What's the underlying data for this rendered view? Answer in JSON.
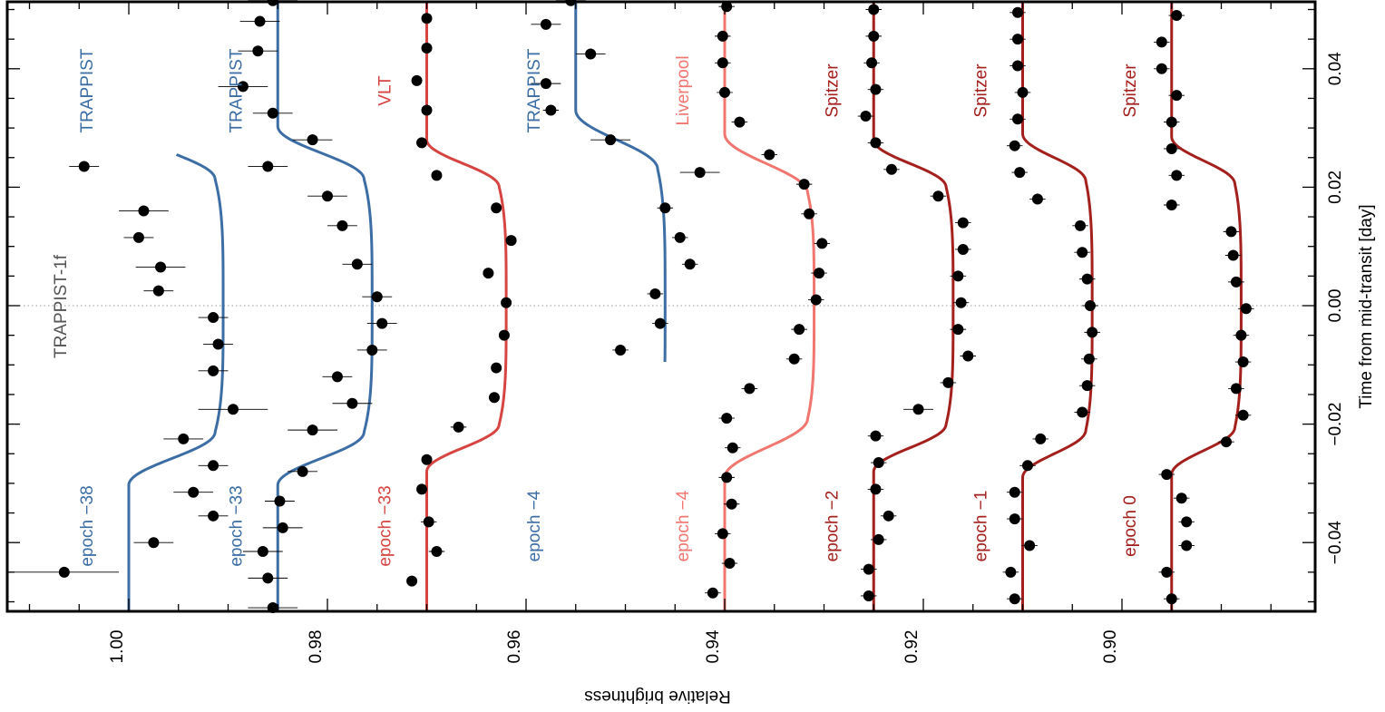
{
  "chart_data": {
    "type": "scatter",
    "title": "",
    "planet_label": "TRAPPIST-1f",
    "xlabel": "Relative brightness",
    "ylabel": "Time from mid-transit [day]",
    "xlim": [
      0.885,
      1.011
    ],
    "ylim": [
      -0.0515,
      0.0515
    ],
    "x_direction": "reversed",
    "x_ticks": [
      1.0,
      0.98,
      0.96,
      0.94,
      0.92,
      0.9
    ],
    "x_tick_labels": [
      "1.00",
      "0.98",
      "0.96",
      "0.94",
      "0.92",
      "0.90"
    ],
    "y_ticks": [
      -0.04,
      -0.02,
      0.0,
      0.02,
      0.04
    ],
    "y_tick_labels": [
      "−0.04",
      "−0.02",
      "0.00",
      "0.02",
      "0.04"
    ],
    "zero_line": true,
    "grid": false,
    "series": [
      {
        "epoch": "epoch −38",
        "instrument": "TRAPPIST",
        "color": "#3c6ea5",
        "baseline": 1.0,
        "depth": 0.0095,
        "half_width": 0.0258,
        "ingress": 0.0045,
        "t_start": -0.0515,
        "t_end": 0.0255,
        "points": [
          {
            "t": -0.045,
            "f": 1.0065,
            "err": 0.0055
          },
          {
            "t": -0.04,
            "f": 0.9975,
            "err": 0.002
          },
          {
            "t": -0.0355,
            "f": 0.9915,
            "err": 0.0015
          },
          {
            "t": -0.0315,
            "f": 0.9935,
            "err": 0.002
          },
          {
            "t": -0.027,
            "f": 0.9915,
            "err": 0.0015
          },
          {
            "t": -0.0225,
            "f": 0.9945,
            "err": 0.002
          },
          {
            "t": -0.0175,
            "f": 0.9895,
            "err": 0.0035
          },
          {
            "t": -0.011,
            "f": 0.9915,
            "err": 0.0015
          },
          {
            "t": -0.0065,
            "f": 0.991,
            "err": 0.0015
          },
          {
            "t": -0.002,
            "f": 0.9915,
            "err": 0.0015
          },
          {
            "t": 0.0025,
            "f": 0.997,
            "err": 0.0015
          },
          {
            "t": 0.0065,
            "f": 0.9968,
            "err": 0.0025
          },
          {
            "t": 0.0115,
            "f": 0.999,
            "err": 0.0015
          },
          {
            "t": 0.016,
            "f": 0.9985,
            "err": 0.0025
          },
          {
            "t": 0.0235,
            "f": 1.0045,
            "err": 0.0015
          }
        ]
      },
      {
        "epoch": "epoch −33",
        "instrument": "TRAPPIST",
        "color": "#3c6ea5",
        "baseline": 0.985,
        "depth": 0.0095,
        "half_width": 0.0258,
        "ingress": 0.0045,
        "t_start": -0.0515,
        "t_end": 0.0515,
        "points": [
          {
            "t": -0.051,
            "f": 0.9855,
            "err": 0.0025
          },
          {
            "t": -0.046,
            "f": 0.986,
            "err": 0.002
          },
          {
            "t": -0.0415,
            "f": 0.9865,
            "err": 0.002
          },
          {
            "t": -0.0375,
            "f": 0.9845,
            "err": 0.002
          },
          {
            "t": -0.033,
            "f": 0.9848,
            "err": 0.0015
          },
          {
            "t": -0.028,
            "f": 0.9825,
            "err": 0.0015
          },
          {
            "t": -0.021,
            "f": 0.9815,
            "err": 0.0025
          },
          {
            "t": -0.0165,
            "f": 0.9775,
            "err": 0.002
          },
          {
            "t": -0.012,
            "f": 0.979,
            "err": 0.0015
          },
          {
            "t": -0.0075,
            "f": 0.9755,
            "err": 0.0015
          },
          {
            "t": -0.003,
            "f": 0.9745,
            "err": 0.0015
          },
          {
            "t": 0.0015,
            "f": 0.975,
            "err": 0.0015
          },
          {
            "t": 0.007,
            "f": 0.977,
            "err": 0.0015
          },
          {
            "t": 0.0135,
            "f": 0.9785,
            "err": 0.0015
          },
          {
            "t": 0.0185,
            "f": 0.98,
            "err": 0.002
          },
          {
            "t": 0.0235,
            "f": 0.986,
            "err": 0.002
          },
          {
            "t": 0.028,
            "f": 0.9815,
            "err": 0.002
          },
          {
            "t": 0.0325,
            "f": 0.9855,
            "err": 0.002
          },
          {
            "t": 0.037,
            "f": 0.9885,
            "err": 0.0025
          },
          {
            "t": 0.043,
            "f": 0.987,
            "err": 0.002
          },
          {
            "t": 0.048,
            "f": 0.9868,
            "err": 0.002
          },
          {
            "t": 0.0515,
            "f": 0.9855,
            "err": 0.0025
          }
        ]
      },
      {
        "epoch": "epoch −33",
        "instrument": "VLT",
        "color": "#d64541",
        "baseline": 0.97,
        "depth": 0.008,
        "half_width": 0.024,
        "ingress": 0.004,
        "t_start": -0.0515,
        "t_end": 0.0515,
        "points": [
          {
            "t": -0.0465,
            "f": 0.9715,
            "err": 0.0005
          },
          {
            "t": -0.0415,
            "f": 0.969,
            "err": 0.0008
          },
          {
            "t": -0.0365,
            "f": 0.9698,
            "err": 0.0008
          },
          {
            "t": -0.031,
            "f": 0.9705,
            "err": 0.0005
          },
          {
            "t": -0.026,
            "f": 0.97,
            "err": 0.0005
          },
          {
            "t": -0.0205,
            "f": 0.9668,
            "err": 0.0008
          },
          {
            "t": -0.0155,
            "f": 0.9632,
            "err": 0.0005
          },
          {
            "t": -0.0105,
            "f": 0.963,
            "err": 0.0005
          },
          {
            "t": -0.005,
            "f": 0.9622,
            "err": 0.0005
          },
          {
            "t": 0.0005,
            "f": 0.962,
            "err": 0.0005
          },
          {
            "t": 0.0055,
            "f": 0.9638,
            "err": 0.0005
          },
          {
            "t": 0.011,
            "f": 0.9615,
            "err": 0.0005
          },
          {
            "t": 0.0165,
            "f": 0.963,
            "err": 0.0005
          },
          {
            "t": 0.022,
            "f": 0.969,
            "err": 0.0005
          },
          {
            "t": 0.0275,
            "f": 0.9705,
            "err": 0.0005
          },
          {
            "t": 0.033,
            "f": 0.97,
            "err": 0.0005
          },
          {
            "t": 0.038,
            "f": 0.971,
            "err": 0.0005
          },
          {
            "t": 0.0435,
            "f": 0.97,
            "err": 0.0005
          },
          {
            "t": 0.0485,
            "f": 0.97,
            "err": 0.0005
          }
        ]
      },
      {
        "epoch": "epoch −4",
        "instrument": "TRAPPIST",
        "color": "#3c6ea5",
        "baseline": 0.955,
        "depth": 0.009,
        "half_width": 0.028,
        "ingress": 0.005,
        "t_start": -0.0095,
        "t_end": 0.0515,
        "points": [
          {
            "t": -0.0075,
            "f": 0.9505,
            "err": 0.0008
          },
          {
            "t": -0.003,
            "f": 0.9465,
            "err": 0.0008
          },
          {
            "t": 0.002,
            "f": 0.947,
            "err": 0.0008
          },
          {
            "t": 0.007,
            "f": 0.9435,
            "err": 0.0008
          },
          {
            "t": 0.0115,
            "f": 0.9445,
            "err": 0.0008
          },
          {
            "t": 0.0165,
            "f": 0.946,
            "err": 0.0008
          },
          {
            "t": 0.0225,
            "f": 0.9425,
            "err": 0.002
          },
          {
            "t": 0.028,
            "f": 0.9515,
            "err": 0.002
          },
          {
            "t": 0.033,
            "f": 0.9575,
            "err": 0.0008
          },
          {
            "t": 0.0375,
            "f": 0.958,
            "err": 0.0015
          },
          {
            "t": 0.0425,
            "f": 0.9535,
            "err": 0.0015
          },
          {
            "t": 0.0475,
            "f": 0.958,
            "err": 0.0015
          },
          {
            "t": 0.0515,
            "f": 0.9555,
            "err": 0.0015
          }
        ]
      },
      {
        "epoch": "epoch −4",
        "instrument": "Liverpool",
        "color": "#f0766f",
        "baseline": 0.94,
        "depth": 0.009,
        "half_width": 0.024,
        "ingress": 0.005,
        "t_start": -0.0515,
        "t_end": 0.0515,
        "points": [
          {
            "t": -0.0485,
            "f": 0.9412,
            "err": 0.0008
          },
          {
            "t": -0.0435,
            "f": 0.9395,
            "err": 0.0008
          },
          {
            "t": -0.0385,
            "f": 0.9402,
            "err": 0.0008
          },
          {
            "t": -0.0335,
            "f": 0.9393,
            "err": 0.0008
          },
          {
            "t": -0.029,
            "f": 0.9398,
            "err": 0.0008
          },
          {
            "t": -0.024,
            "f": 0.9392,
            "err": 0.0008
          },
          {
            "t": -0.019,
            "f": 0.9398,
            "err": 0.0008
          },
          {
            "t": -0.014,
            "f": 0.9375,
            "err": 0.0008
          },
          {
            "t": -0.009,
            "f": 0.933,
            "err": 0.0008
          },
          {
            "t": -0.004,
            "f": 0.9325,
            "err": 0.0008
          },
          {
            "t": 0.001,
            "f": 0.9308,
            "err": 0.0008
          },
          {
            "t": 0.0055,
            "f": 0.9305,
            "err": 0.0008
          },
          {
            "t": 0.0105,
            "f": 0.9302,
            "err": 0.0008
          },
          {
            "t": 0.0155,
            "f": 0.9315,
            "err": 0.0008
          },
          {
            "t": 0.0205,
            "f": 0.932,
            "err": 0.0008
          },
          {
            "t": 0.0255,
            "f": 0.9355,
            "err": 0.0008
          },
          {
            "t": 0.031,
            "f": 0.9385,
            "err": 0.0008
          },
          {
            "t": 0.036,
            "f": 0.94,
            "err": 0.0008
          },
          {
            "t": 0.041,
            "f": 0.9402,
            "err": 0.0008
          },
          {
            "t": 0.0455,
            "f": 0.9402,
            "err": 0.0008
          },
          {
            "t": 0.0505,
            "f": 0.9398,
            "err": 0.0008
          }
        ]
      },
      {
        "epoch": "epoch −2",
        "instrument": "Spitzer",
        "color": "#a3201d",
        "baseline": 0.925,
        "depth": 0.008,
        "half_width": 0.024,
        "ingress": 0.004,
        "t_start": -0.0515,
        "t_end": 0.0515,
        "points": [
          {
            "t": -0.049,
            "f": 0.9255,
            "err": 0.0008
          },
          {
            "t": -0.0445,
            "f": 0.9255,
            "err": 0.0008
          },
          {
            "t": -0.0395,
            "f": 0.9245,
            "err": 0.0008
          },
          {
            "t": -0.0355,
            "f": 0.9235,
            "err": 0.0008
          },
          {
            "t": -0.031,
            "f": 0.9248,
            "err": 0.0008
          },
          {
            "t": -0.0265,
            "f": 0.9245,
            "err": 0.0008
          },
          {
            "t": -0.022,
            "f": 0.9248,
            "err": 0.0008
          },
          {
            "t": -0.0175,
            "f": 0.9205,
            "err": 0.0015
          },
          {
            "t": -0.013,
            "f": 0.9175,
            "err": 0.0008
          },
          {
            "t": -0.0085,
            "f": 0.9155,
            "err": 0.0008
          },
          {
            "t": -0.004,
            "f": 0.9165,
            "err": 0.0008
          },
          {
            "t": 0.0005,
            "f": 0.9162,
            "err": 0.0008
          },
          {
            "t": 0.005,
            "f": 0.9165,
            "err": 0.0008
          },
          {
            "t": 0.0095,
            "f": 0.916,
            "err": 0.0008
          },
          {
            "t": 0.014,
            "f": 0.916,
            "err": 0.0008
          },
          {
            "t": 0.0185,
            "f": 0.9185,
            "err": 0.0008
          },
          {
            "t": 0.023,
            "f": 0.9232,
            "err": 0.0008
          },
          {
            "t": 0.0275,
            "f": 0.9248,
            "err": 0.0008
          },
          {
            "t": 0.032,
            "f": 0.9258,
            "err": 0.0008
          },
          {
            "t": 0.0365,
            "f": 0.9248,
            "err": 0.0008
          },
          {
            "t": 0.041,
            "f": 0.9252,
            "err": 0.0008
          },
          {
            "t": 0.0455,
            "f": 0.925,
            "err": 0.0008
          },
          {
            "t": 0.05,
            "f": 0.925,
            "err": 0.0008
          }
        ]
      },
      {
        "epoch": "epoch −1",
        "instrument": "Spitzer",
        "color": "#a3201d",
        "baseline": 0.91,
        "depth": 0.007,
        "half_width": 0.025,
        "ingress": 0.004,
        "t_start": -0.0515,
        "t_end": 0.0515,
        "points": [
          {
            "t": -0.0495,
            "f": 0.9108,
            "err": 0.0008
          },
          {
            "t": -0.045,
            "f": 0.9112,
            "err": 0.0008
          },
          {
            "t": -0.0405,
            "f": 0.9093,
            "err": 0.0008
          },
          {
            "t": -0.036,
            "f": 0.9108,
            "err": 0.0008
          },
          {
            "t": -0.0315,
            "f": 0.9108,
            "err": 0.0008
          },
          {
            "t": -0.027,
            "f": 0.9095,
            "err": 0.0008
          },
          {
            "t": -0.0225,
            "f": 0.9082,
            "err": 0.0008
          },
          {
            "t": -0.018,
            "f": 0.904,
            "err": 0.0008
          },
          {
            "t": -0.0135,
            "f": 0.9035,
            "err": 0.0008
          },
          {
            "t": -0.009,
            "f": 0.9033,
            "err": 0.0008
          },
          {
            "t": -0.0045,
            "f": 0.903,
            "err": 0.0008
          },
          {
            "t": 0.0,
            "f": 0.9032,
            "err": 0.0008
          },
          {
            "t": 0.0045,
            "f": 0.9035,
            "err": 0.0008
          },
          {
            "t": 0.009,
            "f": 0.904,
            "err": 0.0008
          },
          {
            "t": 0.0135,
            "f": 0.9042,
            "err": 0.0008
          },
          {
            "t": 0.018,
            "f": 0.9085,
            "err": 0.0008
          },
          {
            "t": 0.0225,
            "f": 0.9103,
            "err": 0.0008
          },
          {
            "t": 0.027,
            "f": 0.9108,
            "err": 0.0008
          },
          {
            "t": 0.0315,
            "f": 0.9105,
            "err": 0.0008
          },
          {
            "t": 0.036,
            "f": 0.91,
            "err": 0.0008
          },
          {
            "t": 0.0405,
            "f": 0.9105,
            "err": 0.0008
          },
          {
            "t": 0.045,
            "f": 0.9105,
            "err": 0.0008
          },
          {
            "t": 0.0495,
            "f": 0.9105,
            "err": 0.0008
          }
        ]
      },
      {
        "epoch": "epoch 0",
        "instrument": "Spitzer",
        "color": "#a3201d",
        "baseline": 0.895,
        "depth": 0.007,
        "half_width": 0.0245,
        "ingress": 0.004,
        "t_start": -0.0515,
        "t_end": 0.0515,
        "points": [
          {
            "t": -0.0495,
            "f": 0.895,
            "err": 0.0008
          },
          {
            "t": -0.045,
            "f": 0.8955,
            "err": 0.0008
          },
          {
            "t": -0.0405,
            "f": 0.8935,
            "err": 0.0008
          },
          {
            "t": -0.0365,
            "f": 0.8935,
            "err": 0.0008
          },
          {
            "t": -0.0325,
            "f": 0.894,
            "err": 0.0008
          },
          {
            "t": -0.0285,
            "f": 0.8955,
            "err": 0.0008
          },
          {
            "t": -0.023,
            "f": 0.8895,
            "err": 0.0008
          },
          {
            "t": -0.0185,
            "f": 0.8878,
            "err": 0.0008
          },
          {
            "t": -0.014,
            "f": 0.8885,
            "err": 0.0008
          },
          {
            "t": -0.0095,
            "f": 0.8878,
            "err": 0.0008
          },
          {
            "t": -0.005,
            "f": 0.888,
            "err": 0.0008
          },
          {
            "t": -0.0005,
            "f": 0.8875,
            "err": 0.0008
          },
          {
            "t": 0.004,
            "f": 0.8885,
            "err": 0.0008
          },
          {
            "t": 0.0085,
            "f": 0.8888,
            "err": 0.0008
          },
          {
            "t": 0.0125,
            "f": 0.889,
            "err": 0.0008
          },
          {
            "t": 0.017,
            "f": 0.895,
            "err": 0.0008
          },
          {
            "t": 0.022,
            "f": 0.8945,
            "err": 0.0008
          },
          {
            "t": 0.0265,
            "f": 0.895,
            "err": 0.0008
          },
          {
            "t": 0.031,
            "f": 0.895,
            "err": 0.0008
          },
          {
            "t": 0.0355,
            "f": 0.8945,
            "err": 0.0008
          },
          {
            "t": 0.04,
            "f": 0.896,
            "err": 0.0008
          },
          {
            "t": 0.0445,
            "f": 0.896,
            "err": 0.0008
          },
          {
            "t": 0.049,
            "f": 0.8945,
            "err": 0.0008
          }
        ]
      }
    ]
  }
}
